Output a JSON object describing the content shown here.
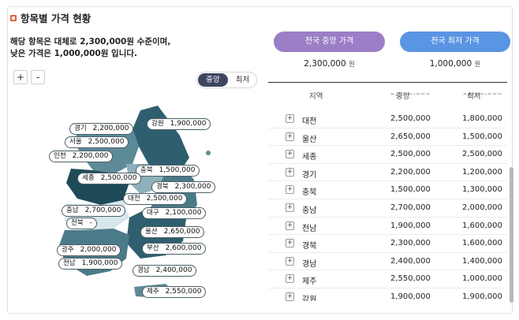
{
  "header": {
    "title": "항목별 가격 현황"
  },
  "summary": {
    "line1": "해당 항목은 대체로 2,300,000원 수준이며,",
    "line2": "낮은 가격은 1,000,000원 입니다."
  },
  "zoom": {
    "in_label": "+",
    "out_label": "-"
  },
  "toggle": {
    "median_label": "중앙",
    "min_label": "최저"
  },
  "national": {
    "median_label": "전국 중앙 가격",
    "min_label": "전국 최저 가격",
    "median_value": "2,300,000",
    "min_value": "1,000,000",
    "unit": "원"
  },
  "table": {
    "headers": {
      "region": "지역",
      "median": "중앙",
      "min": "최저"
    },
    "rows": [
      {
        "region": "대전",
        "median": "2,500,000",
        "min": "1,800,000"
      },
      {
        "region": "울산",
        "median": "2,650,000",
        "min": "1,500,000"
      },
      {
        "region": "세종",
        "median": "2,500,000",
        "min": "2,500,000"
      },
      {
        "region": "경기",
        "median": "2,200,000",
        "min": "1,200,000"
      },
      {
        "region": "충북",
        "median": "1,500,000",
        "min": "1,300,000"
      },
      {
        "region": "충남",
        "median": "2,700,000",
        "min": "2,000,000"
      },
      {
        "region": "전남",
        "median": "1,900,000",
        "min": "1,600,000"
      },
      {
        "region": "경북",
        "median": "2,300,000",
        "min": "1,600,000"
      },
      {
        "region": "경남",
        "median": "2,400,000",
        "min": "1,400,000"
      },
      {
        "region": "제주",
        "median": "2,550,000",
        "min": "1,000,000"
      },
      {
        "region": "강원",
        "median": "1,900,000",
        "min": "1,900,000"
      }
    ]
  },
  "map_labels": [
    {
      "region": "경기",
      "value": "2,200,000"
    },
    {
      "region": "강원",
      "value": "1,900,000"
    },
    {
      "region": "서울",
      "value": "2,500,000"
    },
    {
      "region": "인천",
      "value": "2,200,000"
    },
    {
      "region": "충북",
      "value": "1,500,000"
    },
    {
      "region": "세종",
      "value": "2,500,000"
    },
    {
      "region": "경북",
      "value": "2,300,000"
    },
    {
      "region": "대전",
      "value": "2,500,000"
    },
    {
      "region": "충남",
      "value": "2,700,000"
    },
    {
      "region": "대구",
      "value": "2,100,000"
    },
    {
      "region": "전북",
      "value": "-"
    },
    {
      "region": "울산",
      "value": "2,650,000"
    },
    {
      "region": "광주",
      "value": "2,000,000"
    },
    {
      "region": "부산",
      "value": "2,600,000"
    },
    {
      "region": "전남",
      "value": "1,900,000"
    },
    {
      "region": "경남",
      "value": "2,400,000"
    },
    {
      "region": "제주",
      "value": "2,550,000"
    }
  ],
  "colors": {
    "accent_dark": "#3d4660",
    "median_pill": "#9b7ec6",
    "min_pill": "#5a95e3",
    "map_dark": "#2f5f6e",
    "map_mid": "#5d8a97",
    "map_light": "#d6e6ea"
  }
}
